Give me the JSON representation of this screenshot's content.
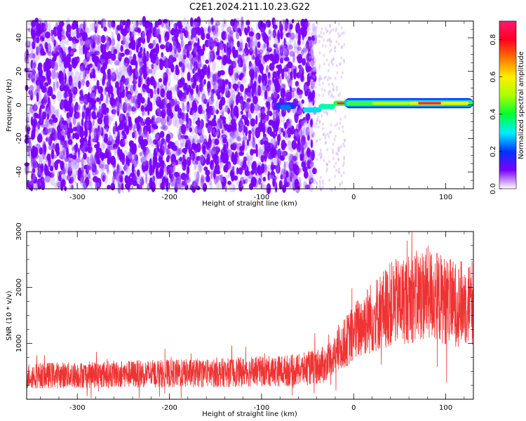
{
  "figure": {
    "title": "C2E1.2024.211.10.23.G22"
  },
  "chart_data": [
    {
      "type": "heatmap",
      "xlabel": "Height of straight line (km)",
      "ylabel": "Frequency (Hz)",
      "xlim": [
        -355,
        130
      ],
      "ylim": [
        -50,
        50
      ],
      "xticks": [
        -300,
        -200,
        -100,
        0,
        100
      ],
      "yticks": [
        -40,
        -20,
        0,
        20,
        40
      ],
      "colorbar": {
        "label": "Normalized spectral amplitude",
        "range": [
          0.0,
          0.9
        ],
        "ticks": [
          0.0,
          0.2,
          0.4,
          0.6,
          0.8
        ],
        "colors": [
          "#ffffff",
          "#7a00ff",
          "#0033ff",
          "#00eeff",
          "#00ff33",
          "#aaff00",
          "#ffee00",
          "#ff7700",
          "#ff0022",
          "#ff1a6e"
        ]
      },
      "regions": [
        {
          "x": [
            -355,
            -50
          ],
          "description_level": 0.15
        },
        {
          "x": [
            -50,
            130
          ],
          "ridge_frequency": 1.0,
          "ridge_peak_amplitude": 0.9
        }
      ]
    },
    {
      "type": "line",
      "xlabel": "Height of straight line (km)",
      "ylabel": "SNR (10 * v/v)",
      "xlim": [
        -355,
        130
      ],
      "ylim": [
        0,
        3000
      ],
      "xticks": [
        -300,
        -200,
        -100,
        0,
        100
      ],
      "yticks": [
        1000,
        2000,
        3000
      ],
      "series": [
        {
          "color": "#ef3333",
          "envelope": [
            {
              "x": -355,
              "mean": 420
            },
            {
              "x": -250,
              "mean": 450
            },
            {
              "x": -150,
              "mean": 470
            },
            {
              "x": -60,
              "mean": 520
            },
            {
              "x": -30,
              "mean": 620
            },
            {
              "x": -10,
              "mean": 1000
            },
            {
              "x": 10,
              "mean": 1350
            },
            {
              "x": 40,
              "mean": 1700
            },
            {
              "x": 80,
              "mean": 1900
            },
            {
              "x": 110,
              "mean": 1700
            },
            {
              "x": 130,
              "mean": 1750
            }
          ]
        }
      ]
    }
  ]
}
